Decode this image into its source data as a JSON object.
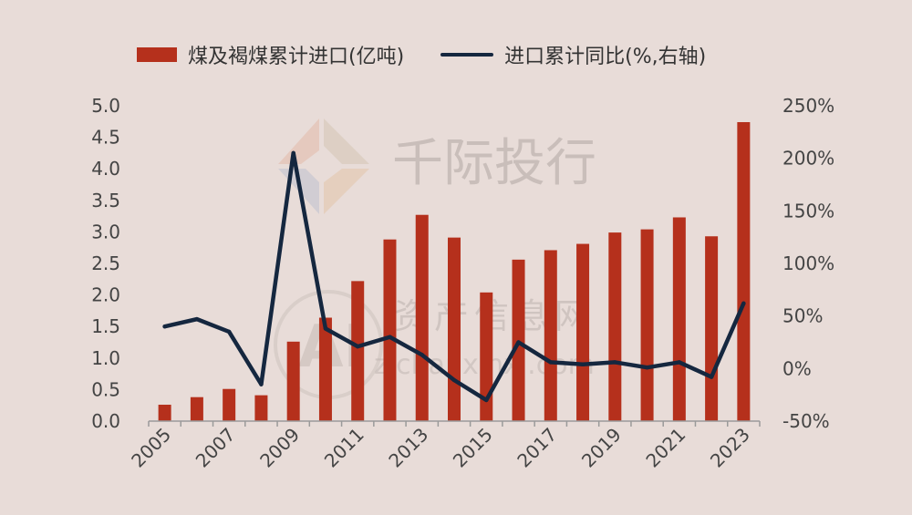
{
  "legend": {
    "bar_label": "煤及褐煤累计进口(亿吨)",
    "line_label": "进口累计同比(%,右轴)"
  },
  "watermark": {
    "brand": "千际投行",
    "site": "资产信息网",
    "url": "zichanxinxi.com",
    "logo_letters": "AI"
  },
  "colors": {
    "background": "#e8dcd8",
    "bar": "#b5301c",
    "line": "#15273f",
    "axis_text": "#444444"
  },
  "chart_data": {
    "type": "bar",
    "years": [
      "2005",
      "2006",
      "2007",
      "2008",
      "2009",
      "2010",
      "2011",
      "2012",
      "2013",
      "2014",
      "2015",
      "2016",
      "2017",
      "2018",
      "2019",
      "2020",
      "2021",
      "2022",
      "2023"
    ],
    "x_tick_labels": [
      "2005",
      "2007",
      "2009",
      "2011",
      "2013",
      "2015",
      "2017",
      "2019",
      "2021",
      "2023"
    ],
    "series": [
      {
        "name": "煤及褐煤累计进口(亿吨)",
        "type": "bar",
        "axis": "left",
        "values": [
          0.26,
          0.38,
          0.51,
          0.41,
          1.26,
          1.64,
          2.22,
          2.88,
          3.27,
          2.91,
          2.04,
          2.56,
          2.71,
          2.81,
          2.99,
          3.04,
          3.23,
          2.93,
          4.74
        ]
      },
      {
        "name": "进口累计同比(%,右轴)",
        "type": "line",
        "axis": "right",
        "values": [
          40,
          47,
          35,
          -15,
          205,
          38,
          21,
          30,
          13,
          -11,
          -30,
          25,
          6,
          4,
          6,
          1,
          6,
          -8,
          62
        ]
      }
    ],
    "y_left": {
      "min": 0,
      "max": 5,
      "step": 0.5,
      "tick_labels": [
        "0.0",
        "0.5",
        "1.0",
        "1.5",
        "2.0",
        "2.5",
        "3.0",
        "3.5",
        "4.0",
        "4.5",
        "5.0"
      ]
    },
    "y_right": {
      "min": -50,
      "max": 250,
      "step": 50,
      "tick_labels": [
        "-50%",
        "0%",
        "50%",
        "100%",
        "150%",
        "200%",
        "250%"
      ]
    },
    "grid": false,
    "legend_position": "top"
  }
}
